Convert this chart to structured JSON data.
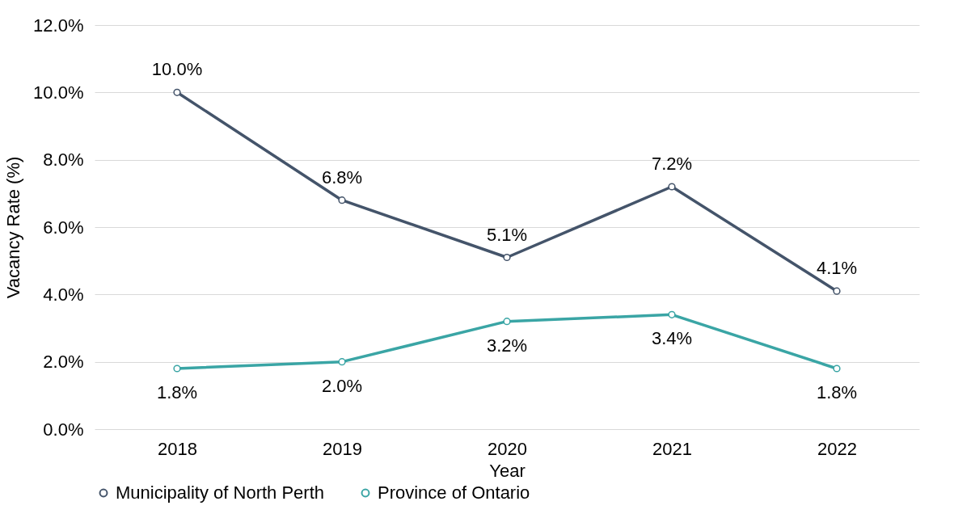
{
  "chart_data": {
    "type": "line",
    "xlabel": "Year",
    "ylabel": "Vacancy Rate (%)",
    "categories": [
      "2018",
      "2019",
      "2020",
      "2021",
      "2022"
    ],
    "series": [
      {
        "name": "Municipality of North Perth",
        "color": "#44546a",
        "values": [
          10.0,
          6.8,
          5.1,
          7.2,
          4.1
        ],
        "value_labels": [
          "10.0%",
          "6.8%",
          "5.1%",
          "7.2%",
          "4.1%"
        ]
      },
      {
        "name": "Province of Ontario",
        "color": "#3aa5a5",
        "values": [
          1.8,
          2.0,
          3.2,
          3.4,
          1.8
        ],
        "value_labels": [
          "1.8%",
          "2.0%",
          "3.2%",
          "3.4%",
          "1.8%"
        ]
      }
    ],
    "ylim": [
      0,
      12
    ],
    "yticks": [
      {
        "value": 0,
        "label": "0.0%"
      },
      {
        "value": 2,
        "label": "2.0%"
      },
      {
        "value": 4,
        "label": "4.0%"
      },
      {
        "value": 6,
        "label": "6.0%"
      },
      {
        "value": 8,
        "label": "8.0%"
      },
      {
        "value": 10,
        "label": "10.0%"
      },
      {
        "value": 12,
        "label": "12.0%"
      }
    ],
    "grid": "y",
    "legend": "bottom",
    "marker": "circle",
    "line_style": "solid"
  }
}
